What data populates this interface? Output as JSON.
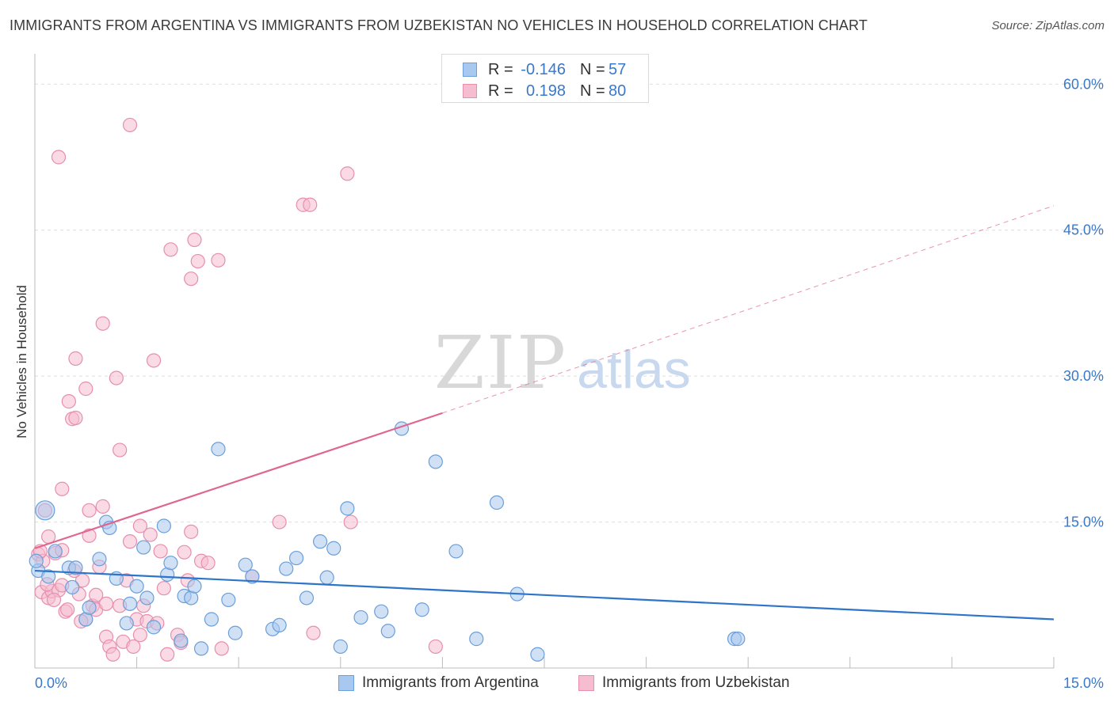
{
  "title": "IMMIGRANTS FROM ARGENTINA VS IMMIGRANTS FROM UZBEKISTAN NO VEHICLES IN HOUSEHOLD CORRELATION CHART",
  "source": "Source: ZipAtlas.com",
  "watermark": {
    "zip": "ZIP",
    "atlas": "atlas"
  },
  "legend": {
    "r_label": "R =",
    "n_label": "N =",
    "rows": [
      {
        "r": "-0.146",
        "n": "57"
      },
      {
        "r": "0.198",
        "n": "80"
      }
    ]
  },
  "colors": {
    "argentina_fill": "#a9c8ef",
    "argentina_stroke": "#6a9fd9",
    "argentina_line": "#2e74c8",
    "uzbekistan_fill": "#f6bcd0",
    "uzbekistan_stroke": "#e68fae",
    "uzbekistan_line": "#e0668e",
    "tick_text": "#3a78c8",
    "grid": "#dddddd"
  },
  "chart_data": {
    "type": "scatter",
    "title": "IMMIGRANTS FROM ARGENTINA VS IMMIGRANTS FROM UZBEKISTAN NO VEHICLES IN HOUSEHOLD CORRELATION CHART",
    "xlabel": "",
    "ylabel": "No Vehicles in Household",
    "xlim": [
      0,
      15
    ],
    "ylim": [
      0,
      60
    ],
    "x_tick_labels": [
      {
        "value": 0,
        "label": "0.0%"
      },
      {
        "value": 15,
        "label": "15.0%"
      }
    ],
    "y_tick_labels": [
      {
        "value": 15,
        "label": "15.0%"
      },
      {
        "value": 30,
        "label": "30.0%"
      },
      {
        "value": 45,
        "label": "45.0%"
      },
      {
        "value": 60,
        "label": "60.0%"
      }
    ],
    "grid": true,
    "legend_position": "top-center",
    "series": [
      {
        "name": "Immigrants from Argentina",
        "r": -0.146,
        "n": 57,
        "trend": {
          "x": [
            0,
            15
          ],
          "y": [
            10.0,
            5.0
          ],
          "style": "solid"
        },
        "points": [
          [
            0.15,
            16.2
          ],
          [
            0.05,
            10.0
          ],
          [
            0.2,
            9.4
          ],
          [
            0.3,
            12.0
          ],
          [
            0.5,
            10.3
          ],
          [
            0.55,
            8.3
          ],
          [
            0.6,
            10.3
          ],
          [
            0.75,
            5.0
          ],
          [
            0.8,
            6.2
          ],
          [
            0.95,
            11.2
          ],
          [
            1.05,
            15.0
          ],
          [
            1.1,
            14.4
          ],
          [
            1.2,
            9.2
          ],
          [
            1.35,
            4.6
          ],
          [
            1.4,
            6.6
          ],
          [
            1.5,
            8.4
          ],
          [
            1.6,
            12.4
          ],
          [
            1.65,
            7.2
          ],
          [
            1.75,
            4.2
          ],
          [
            1.9,
            14.6
          ],
          [
            1.95,
            9.6
          ],
          [
            2.0,
            10.8
          ],
          [
            2.15,
            2.8
          ],
          [
            2.2,
            7.4
          ],
          [
            2.3,
            7.2
          ],
          [
            2.35,
            8.4
          ],
          [
            2.45,
            2.0
          ],
          [
            2.6,
            5.0
          ],
          [
            2.7,
            22.5
          ],
          [
            2.85,
            7.0
          ],
          [
            2.95,
            3.6
          ],
          [
            3.1,
            10.6
          ],
          [
            3.2,
            9.4
          ],
          [
            3.5,
            4.0
          ],
          [
            3.6,
            4.4
          ],
          [
            3.7,
            10.2
          ],
          [
            3.85,
            11.3
          ],
          [
            4.0,
            7.2
          ],
          [
            4.2,
            13.0
          ],
          [
            4.3,
            9.3
          ],
          [
            4.4,
            12.3
          ],
          [
            4.5,
            2.2
          ],
          [
            4.6,
            16.4
          ],
          [
            4.8,
            5.2
          ],
          [
            5.1,
            5.8
          ],
          [
            5.2,
            3.8
          ],
          [
            5.4,
            24.6
          ],
          [
            5.7,
            6.0
          ],
          [
            5.9,
            21.2
          ],
          [
            6.2,
            12.0
          ],
          [
            6.5,
            3.0
          ],
          [
            6.8,
            17.0
          ],
          [
            7.1,
            7.6
          ],
          [
            7.4,
            1.4
          ],
          [
            10.3,
            3.0
          ],
          [
            10.35,
            3.0
          ],
          [
            0.02,
            11.0
          ]
        ]
      },
      {
        "name": "Immigrants from Uzbekistan",
        "r": 0.198,
        "n": 80,
        "trend": {
          "x": [
            0,
            6
          ],
          "y": [
            12.3,
            26.2
          ],
          "extended": {
            "x": [
              6,
              15
            ],
            "y": [
              26.2,
              47.5
            ]
          },
          "style": "solid-then-dashed"
        },
        "points": [
          [
            0.05,
            11.7
          ],
          [
            0.1,
            7.8
          ],
          [
            0.12,
            11.0
          ],
          [
            0.15,
            16.2
          ],
          [
            0.2,
            13.5
          ],
          [
            0.2,
            7.2
          ],
          [
            0.25,
            7.9
          ],
          [
            0.3,
            11.8
          ],
          [
            0.35,
            8.0
          ],
          [
            0.35,
            52.5
          ],
          [
            0.4,
            12.1
          ],
          [
            0.4,
            8.5
          ],
          [
            0.4,
            18.4
          ],
          [
            0.45,
            5.8
          ],
          [
            0.5,
            27.4
          ],
          [
            0.55,
            25.6
          ],
          [
            0.6,
            31.8
          ],
          [
            0.6,
            25.7
          ],
          [
            0.65,
            7.6
          ],
          [
            0.7,
            9.0
          ],
          [
            0.75,
            5.0
          ],
          [
            0.75,
            28.7
          ],
          [
            0.8,
            16.2
          ],
          [
            0.8,
            13.6
          ],
          [
            0.85,
            6.4
          ],
          [
            0.9,
            6.0
          ],
          [
            0.9,
            7.5
          ],
          [
            0.95,
            10.4
          ],
          [
            1.0,
            35.4
          ],
          [
            1.0,
            16.6
          ],
          [
            1.05,
            6.6
          ],
          [
            1.05,
            3.2
          ],
          [
            1.1,
            2.2
          ],
          [
            1.15,
            1.4
          ],
          [
            1.2,
            29.8
          ],
          [
            1.25,
            6.4
          ],
          [
            1.25,
            22.4
          ],
          [
            1.3,
            2.7
          ],
          [
            1.35,
            9.0
          ],
          [
            1.4,
            55.8
          ],
          [
            1.4,
            13.0
          ],
          [
            1.45,
            2.2
          ],
          [
            1.5,
            5.0
          ],
          [
            1.55,
            3.4
          ],
          [
            1.55,
            14.6
          ],
          [
            1.6,
            6.4
          ],
          [
            1.65,
            4.8
          ],
          [
            1.7,
            13.7
          ],
          [
            1.75,
            31.6
          ],
          [
            1.8,
            4.6
          ],
          [
            1.85,
            12.0
          ],
          [
            1.9,
            8.2
          ],
          [
            1.95,
            1.4
          ],
          [
            2.0,
            43.0
          ],
          [
            2.1,
            3.4
          ],
          [
            2.15,
            2.6
          ],
          [
            2.2,
            11.9
          ],
          [
            2.25,
            9.0
          ],
          [
            2.3,
            40.0
          ],
          [
            2.3,
            14.0
          ],
          [
            2.35,
            44.0
          ],
          [
            2.4,
            41.8
          ],
          [
            2.45,
            11.0
          ],
          [
            2.55,
            10.8
          ],
          [
            2.7,
            41.9
          ],
          [
            2.75,
            2.0
          ],
          [
            3.2,
            9.4
          ],
          [
            3.6,
            15.0
          ],
          [
            3.95,
            47.6
          ],
          [
            4.05,
            47.6
          ],
          [
            4.1,
            3.6
          ],
          [
            4.6,
            50.8
          ],
          [
            4.65,
            15.0
          ],
          [
            5.9,
            2.2
          ],
          [
            0.08,
            12.0
          ],
          [
            0.18,
            8.6
          ],
          [
            0.28,
            7.0
          ],
          [
            0.48,
            6.0
          ],
          [
            0.58,
            10.0
          ],
          [
            0.68,
            4.8
          ]
        ]
      }
    ]
  },
  "bottom_legend": [
    {
      "label": "Immigrants from Argentina"
    },
    {
      "label": "Immigrants from Uzbekistan"
    }
  ]
}
